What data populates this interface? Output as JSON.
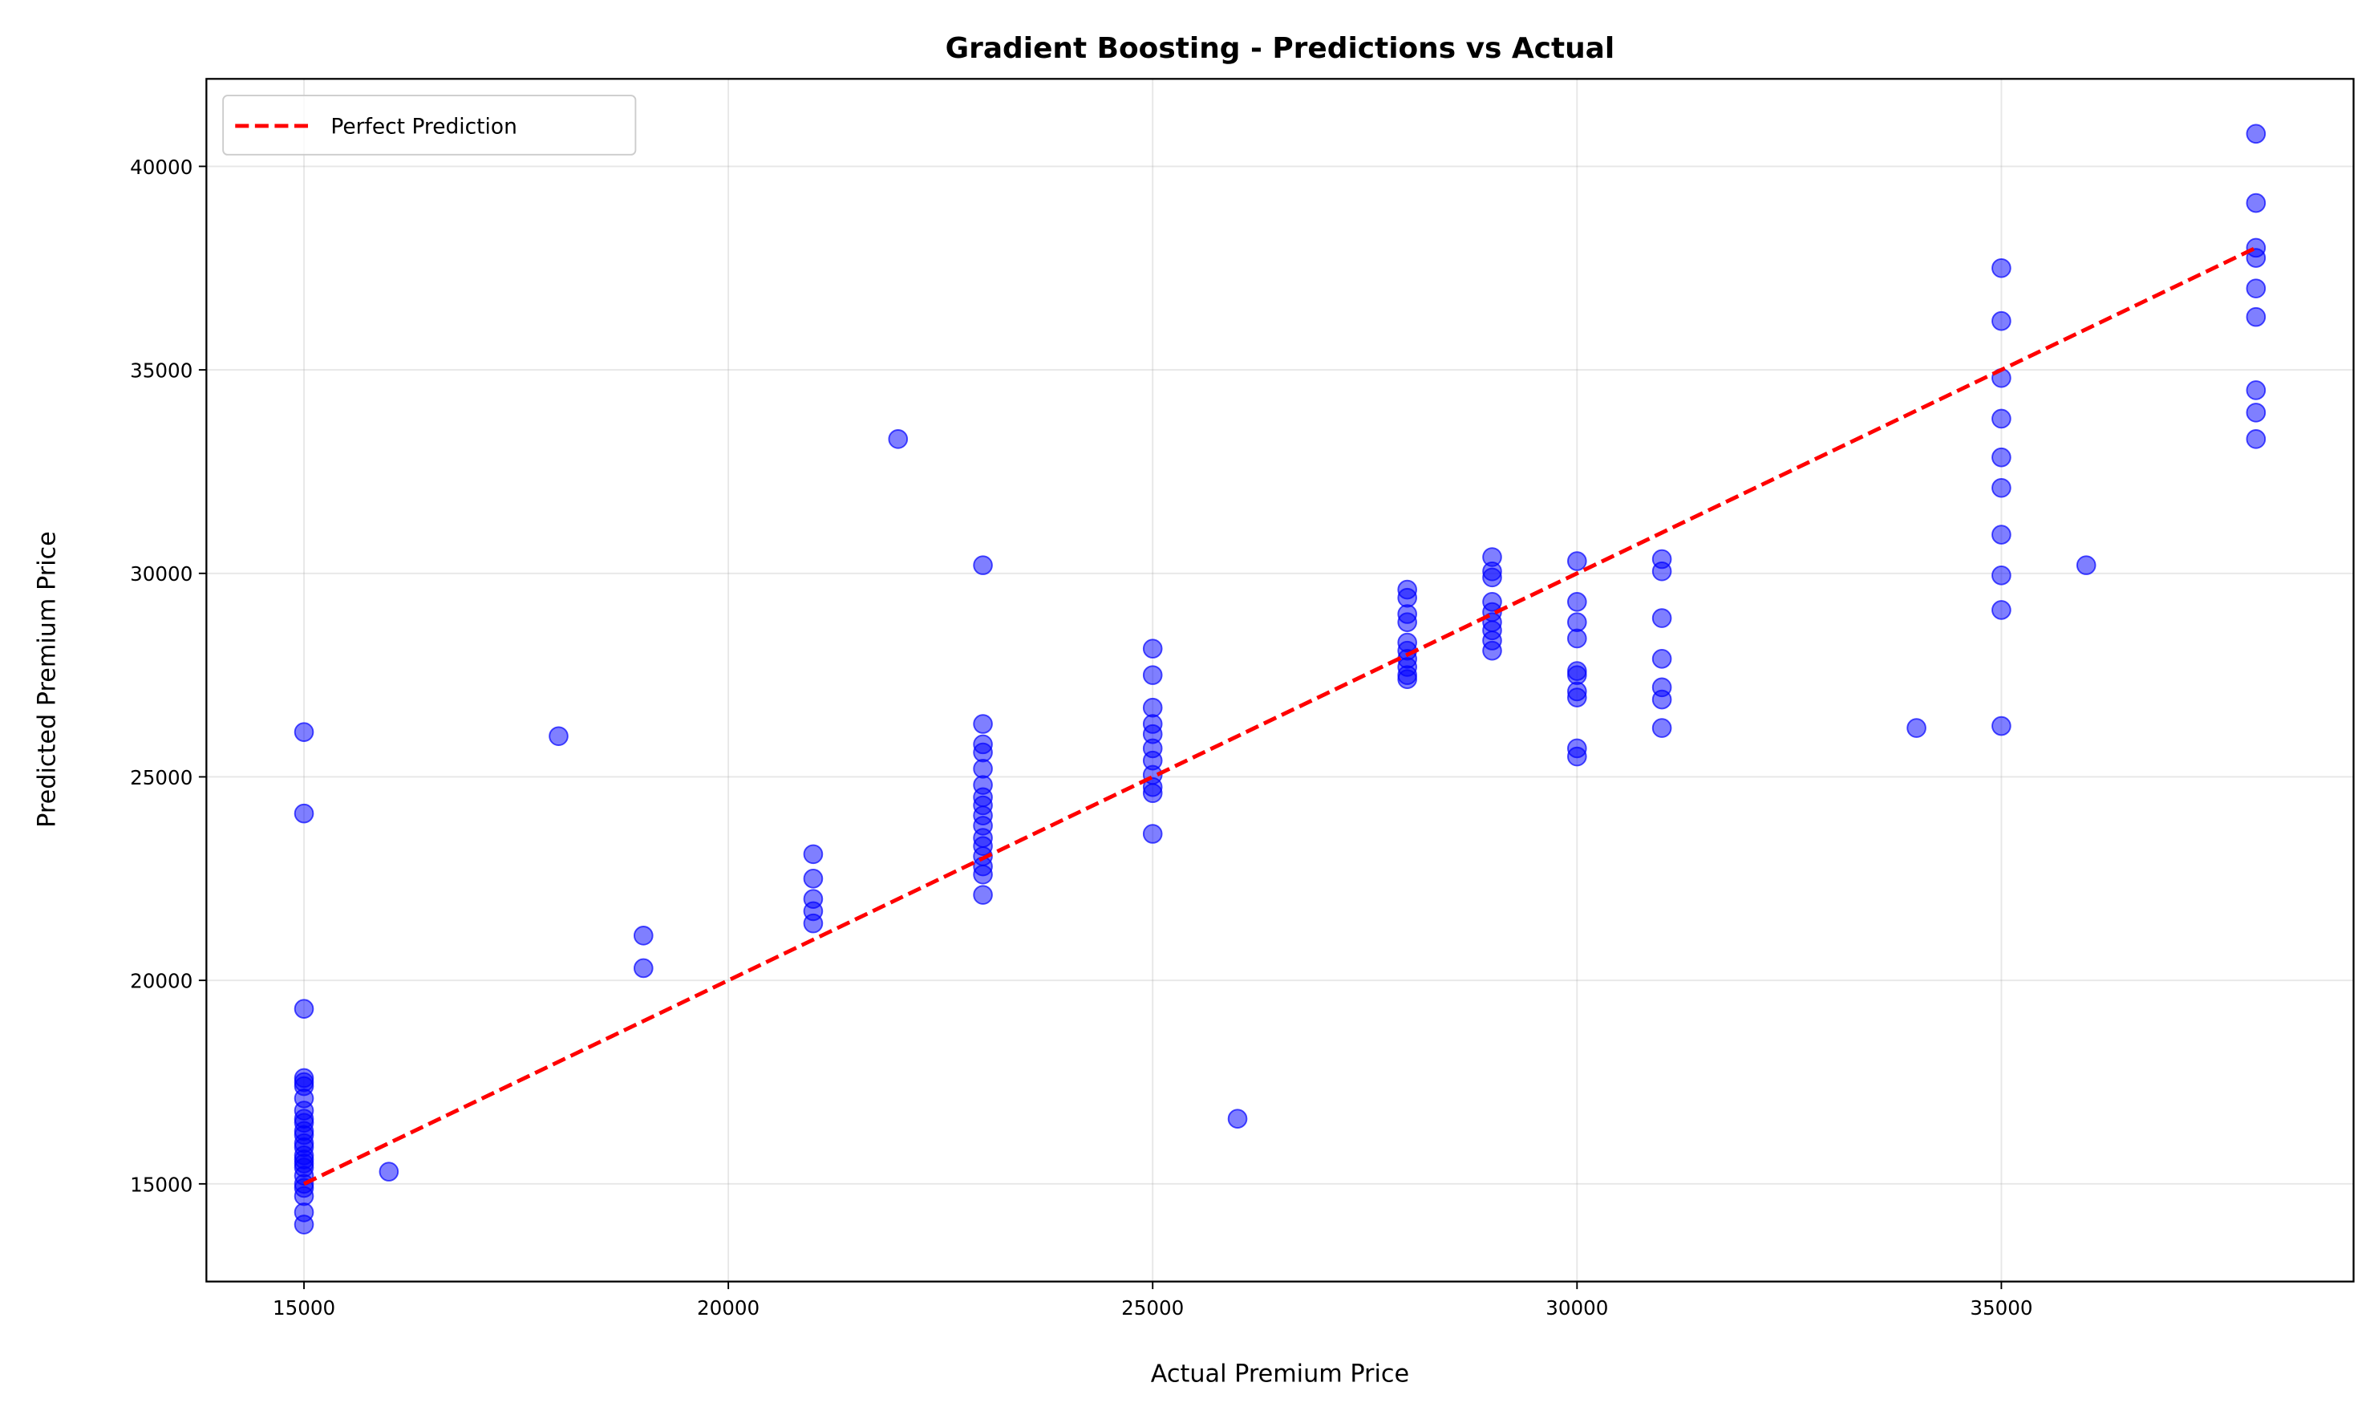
{
  "chart_data": {
    "type": "scatter",
    "title": "Gradient Boosting - Predictions vs Actual",
    "xlabel": "Actual Premium Price",
    "ylabel": "Predicted Premium Price",
    "color": "#0000ff",
    "alpha": 0.5,
    "x": [
      15000,
      15000,
      15000,
      15000,
      15000,
      15000,
      15000,
      15000,
      15000,
      15000,
      15000,
      15000,
      15000,
      15000,
      15000,
      15000,
      15000,
      15000,
      15000,
      15000,
      15000,
      15000,
      15000,
      15000,
      16000,
      18000,
      19000,
      19000,
      21000,
      21000,
      21000,
      21000,
      21000,
      22000,
      23000,
      23000,
      23000,
      23000,
      23000,
      23000,
      23000,
      23000,
      23000,
      23000,
      23000,
      23000,
      23000,
      23000,
      23000,
      23000,
      25000,
      25000,
      25000,
      25000,
      25000,
      25000,
      25000,
      25000,
      25000,
      25000,
      25000,
      26000,
      28000,
      28000,
      28000,
      28000,
      28000,
      28000,
      28000,
      28000,
      28000,
      28000,
      29000,
      29000,
      29000,
      29000,
      29000,
      29000,
      29000,
      29000,
      29000,
      30000,
      30000,
      30000,
      30000,
      30000,
      30000,
      30000,
      30000,
      30000,
      30000,
      31000,
      31000,
      31000,
      31000,
      31000,
      31000,
      31000,
      34000,
      35000,
      35000,
      35000,
      35000,
      35000,
      35000,
      35000,
      35000,
      35000,
      35000,
      36000,
      38000,
      38000,
      38000,
      38000,
      38000,
      38000,
      38000,
      38000,
      38000
    ],
    "y": [
      26100,
      24100,
      19300,
      17600,
      17500,
      17400,
      17100,
      16800,
      16600,
      16500,
      16300,
      16200,
      16000,
      15900,
      15700,
      15600,
      15500,
      15400,
      15200,
      15000,
      14900,
      14700,
      14300,
      14000,
      15300,
      26000,
      21100,
      20300,
      23100,
      22500,
      22000,
      21700,
      21400,
      33300,
      30200,
      26300,
      25800,
      25600,
      25200,
      24800,
      24500,
      24300,
      24050,
      23800,
      23500,
      23300,
      23050,
      22800,
      22600,
      22100,
      28150,
      27500,
      26700,
      26300,
      26050,
      25700,
      25400,
      25050,
      24750,
      24600,
      23600,
      16600,
      29600,
      29400,
      29000,
      28800,
      28300,
      28100,
      27900,
      27700,
      27500,
      27400,
      30400,
      30050,
      29900,
      29300,
      29050,
      28800,
      28600,
      28350,
      28100,
      30300,
      29300,
      28800,
      28400,
      27600,
      27500,
      27100,
      26950,
      25700,
      25500,
      30350,
      30050,
      28900,
      27900,
      27200,
      26900,
      26200,
      26200,
      37500,
      36200,
      34800,
      33800,
      32850,
      32100,
      30950,
      29950,
      29100,
      26250,
      30200,
      40800,
      39100,
      38000,
      37750,
      37000,
      36300,
      34500,
      33950,
      33300
    ],
    "line": {
      "name": "Perfect Prediction",
      "color": "#ff0000",
      "dash": true,
      "x": [
        15000,
        38000
      ],
      "values": [
        15000,
        38000
      ]
    },
    "xlim": [
      13850,
      39150
    ],
    "ylim": [
      12600,
      42150
    ],
    "xticks": [
      15000,
      20000,
      25000,
      30000,
      35000
    ],
    "yticks": [
      15000,
      20000,
      25000,
      30000,
      35000,
      40000
    ],
    "grid": true,
    "legend": "upper left"
  }
}
